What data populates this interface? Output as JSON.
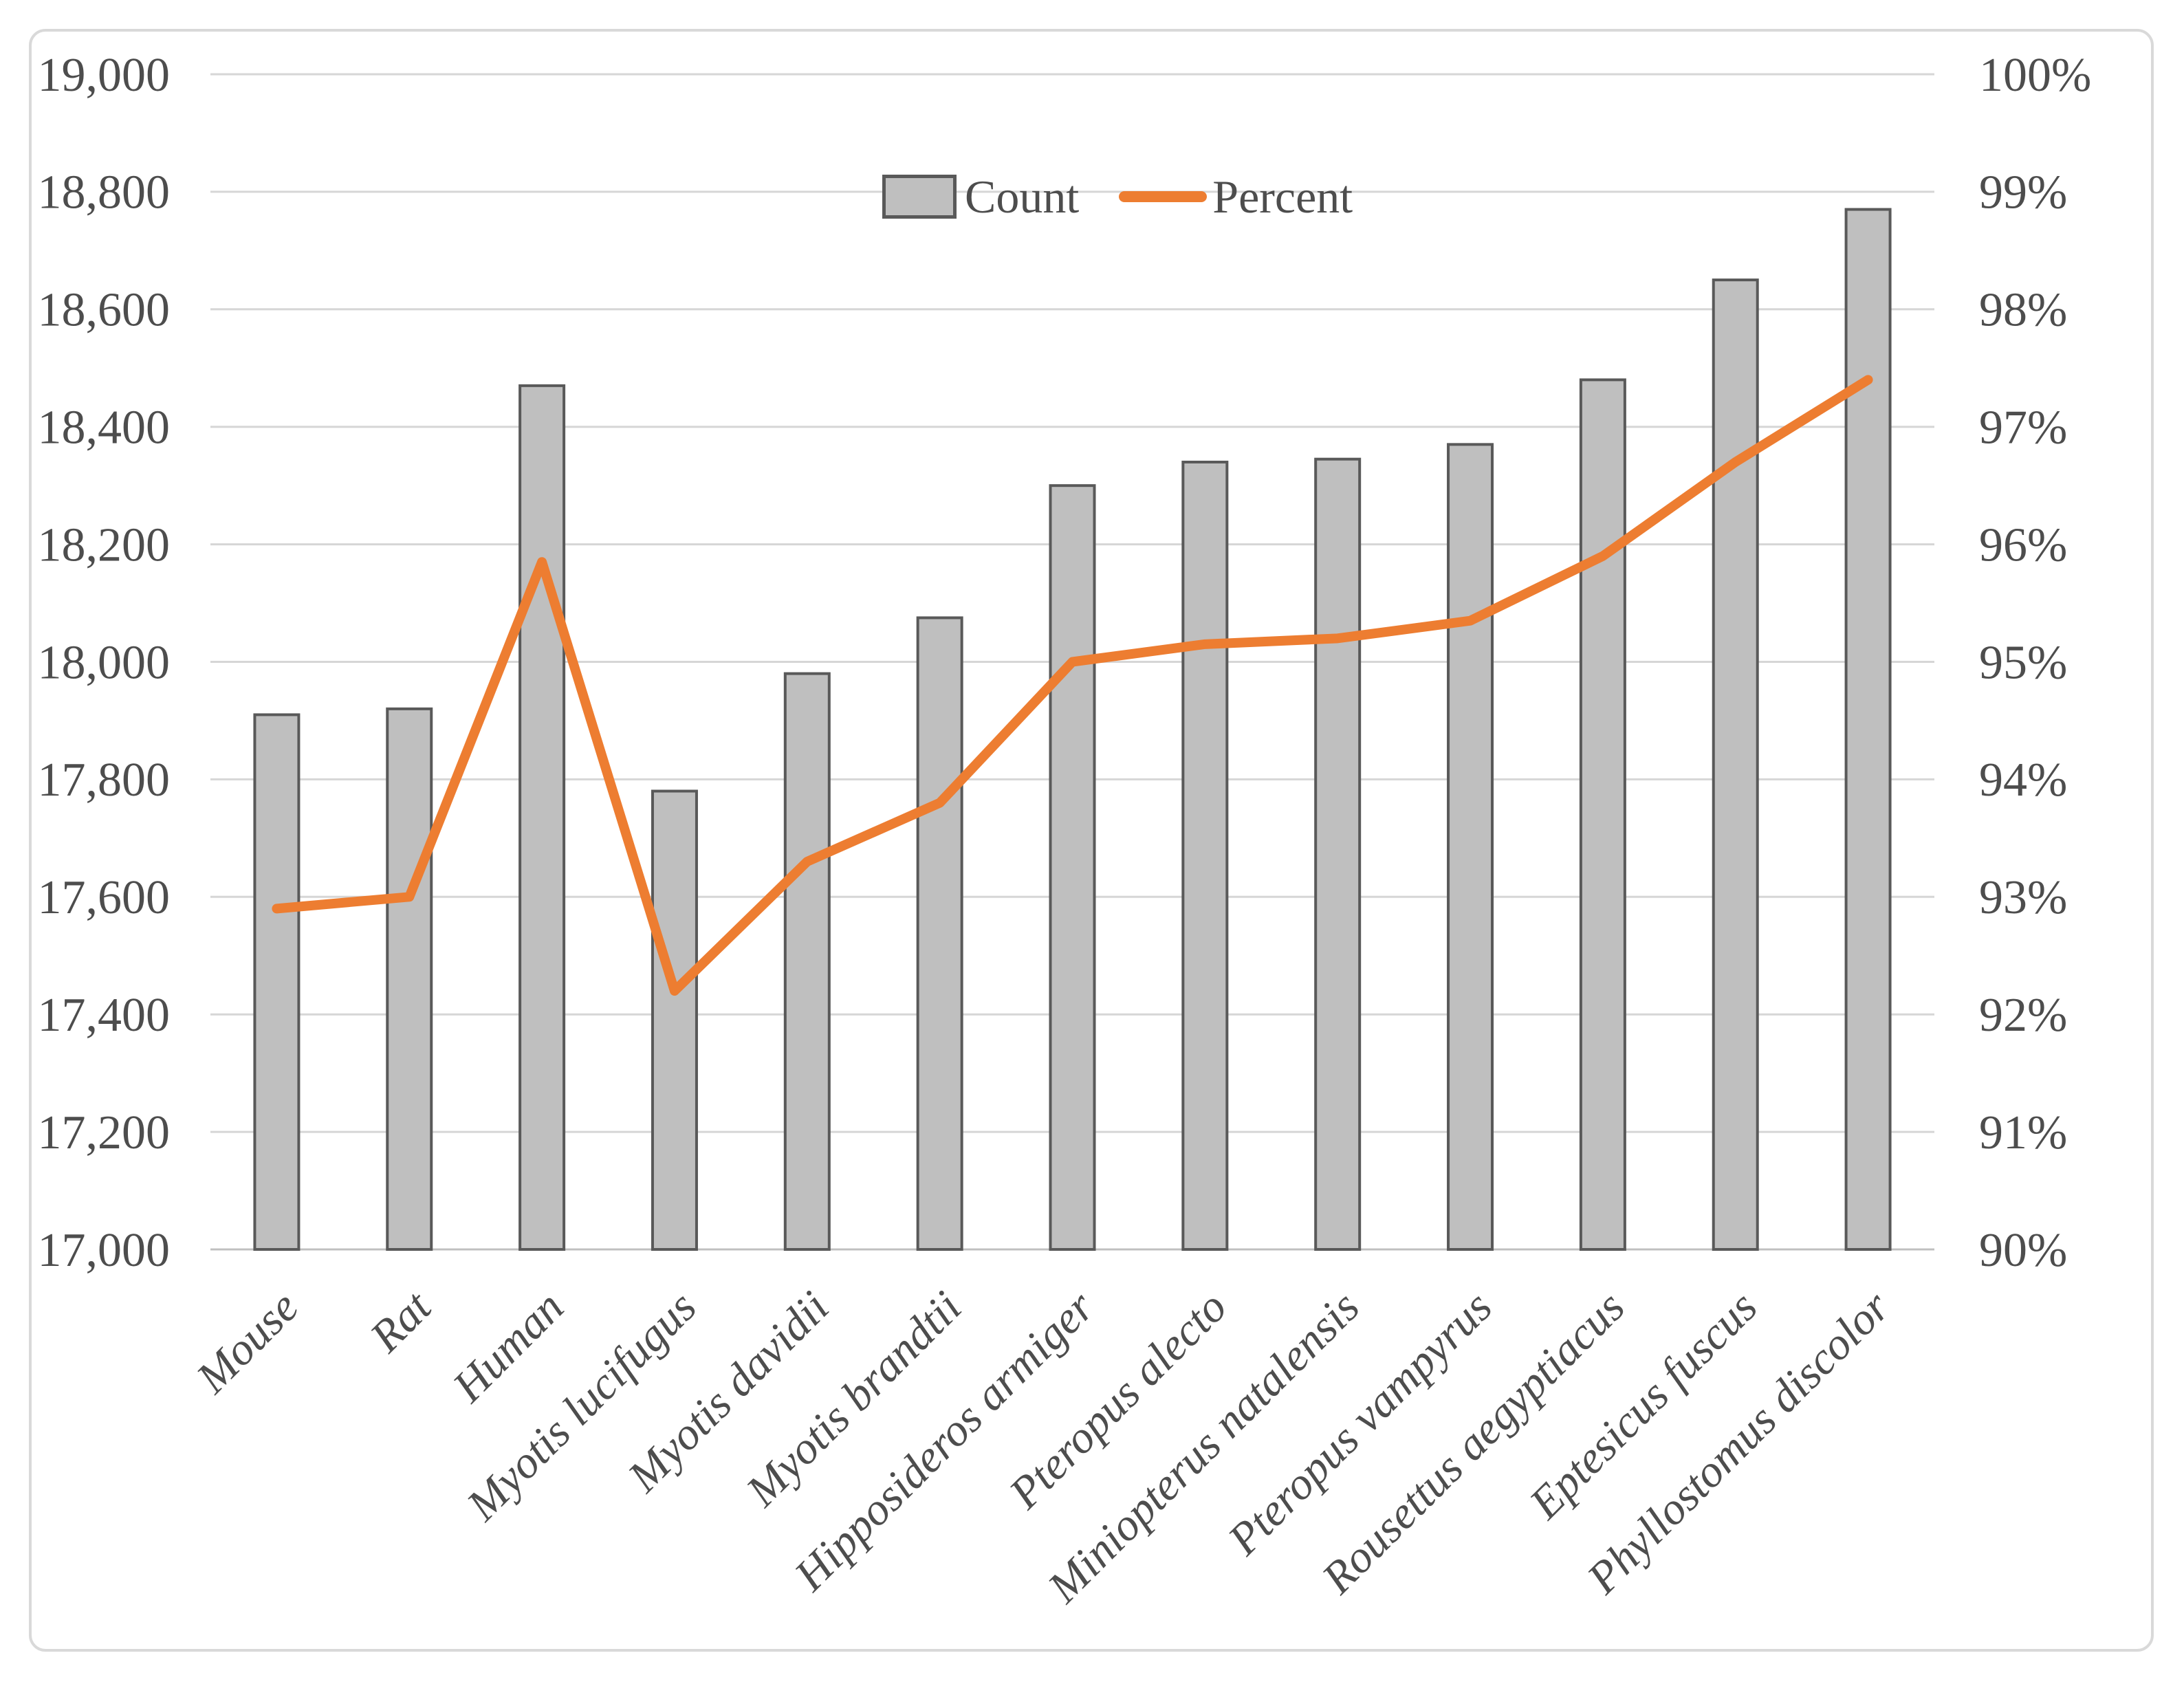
{
  "legend": {
    "count_label": "Count",
    "percent_label": "Percent"
  },
  "chart_data": {
    "type": "bar",
    "subtype": "combo-bar-line-dual-axis",
    "title": "",
    "xlabel": "",
    "ylabel_left": "",
    "ylabel_right": "",
    "grid": true,
    "legend_position": "top-center",
    "categories": [
      "Mouse",
      "Rat",
      "Human",
      "Myotis lucifugus",
      "Myotis davidii",
      "Myotis brandtii",
      "Hipposideros armiger",
      "Pteropus alecto",
      "Miniopterus natalensis",
      "Pteropus vampyrus",
      "Rousettus aegyptiacus",
      "Eptesicus fuscus",
      "Phyllostomus discolor"
    ],
    "series": [
      {
        "name": "Count",
        "type": "bar",
        "axis": "left",
        "values": [
          17910,
          17920,
          18470,
          17780,
          17980,
          18075,
          18300,
          18340,
          18345,
          18370,
          18480,
          18650,
          18770
        ]
      },
      {
        "name": "Percent",
        "type": "line",
        "axis": "right",
        "values": [
          92.9,
          93.0,
          95.85,
          92.2,
          93.3,
          93.8,
          95.0,
          95.15,
          95.2,
          95.35,
          95.9,
          96.7,
          97.4
        ]
      }
    ],
    "left_axis": {
      "min": 17000,
      "max": 19000,
      "step": 200,
      "tick_labels": [
        "17,000",
        "17,200",
        "17,400",
        "17,600",
        "17,800",
        "18,000",
        "18,200",
        "18,400",
        "18,600",
        "18,800",
        "19,000"
      ]
    },
    "right_axis": {
      "min": 90,
      "max": 100,
      "step": 1,
      "tick_labels": [
        "90%",
        "91%",
        "92%",
        "93%",
        "94%",
        "95%",
        "96%",
        "97%",
        "98%",
        "99%",
        "100%"
      ]
    },
    "colors": {
      "bar_fill": "#BFBFBF",
      "bar_border": "#595959",
      "line": "#ED7D31",
      "gridline": "#D6D6D6",
      "axis_line": "#C0C0C0",
      "text": "#4D4D4D",
      "frame": "#D9D9D9",
      "background": "#FFFFFF"
    }
  }
}
